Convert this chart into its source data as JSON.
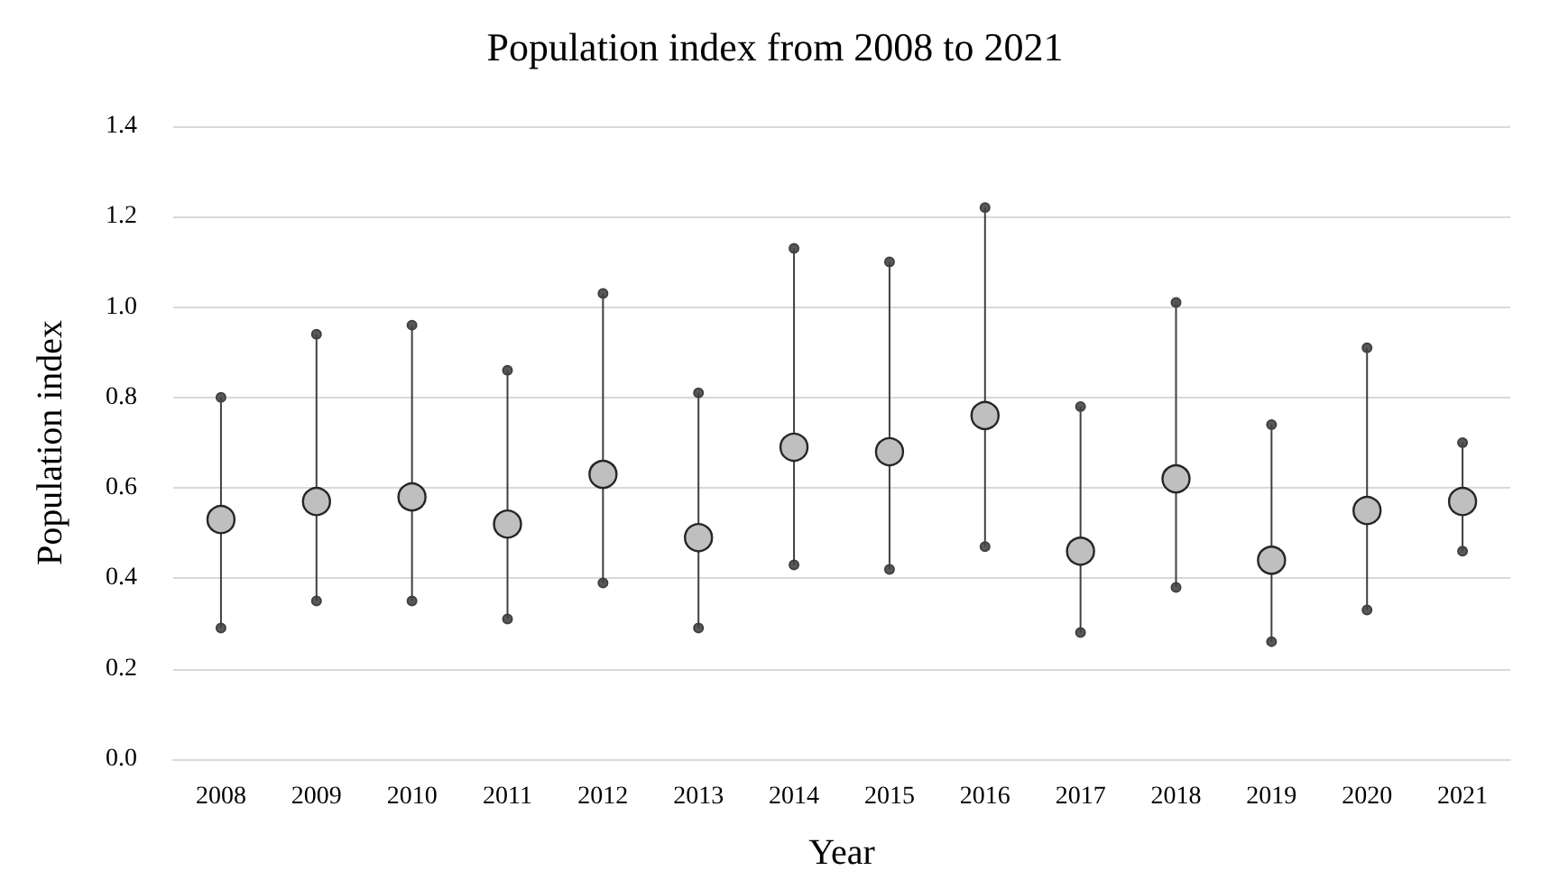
{
  "chart_data": {
    "type": "scatter",
    "title": "Population index from 2008 to 2021",
    "xlabel": "Year",
    "ylabel": "Population index",
    "categories": [
      "2008",
      "2009",
      "2010",
      "2011",
      "2012",
      "2013",
      "2014",
      "2015",
      "2016",
      "2017",
      "2018",
      "2019",
      "2020",
      "2021"
    ],
    "values": [
      0.53,
      0.57,
      0.58,
      0.52,
      0.63,
      0.49,
      0.69,
      0.68,
      0.76,
      0.46,
      0.62,
      0.44,
      0.55,
      0.57
    ],
    "errors": [
      [
        0.29,
        0.8
      ],
      [
        0.35,
        0.94
      ],
      [
        0.35,
        0.96
      ],
      [
        0.31,
        0.86
      ],
      [
        0.39,
        1.03
      ],
      [
        0.29,
        0.81
      ],
      [
        0.43,
        1.13
      ],
      [
        0.42,
        1.1
      ],
      [
        0.47,
        1.22
      ],
      [
        0.28,
        0.78
      ],
      [
        0.38,
        1.01
      ],
      [
        0.26,
        0.74
      ],
      [
        0.33,
        0.91
      ],
      [
        0.46,
        0.7
      ]
    ],
    "color": "#bfbfbf",
    "marker": "circle",
    "ylim": [
      0,
      1.4
    ],
    "yticks": [
      {
        "value": 0,
        "label": "0.0"
      },
      0.2,
      0.4,
      0.6,
      0.8,
      {
        "value": 1,
        "label": "1.0"
      },
      1.2,
      1.4
    ],
    "grid": "y"
  }
}
